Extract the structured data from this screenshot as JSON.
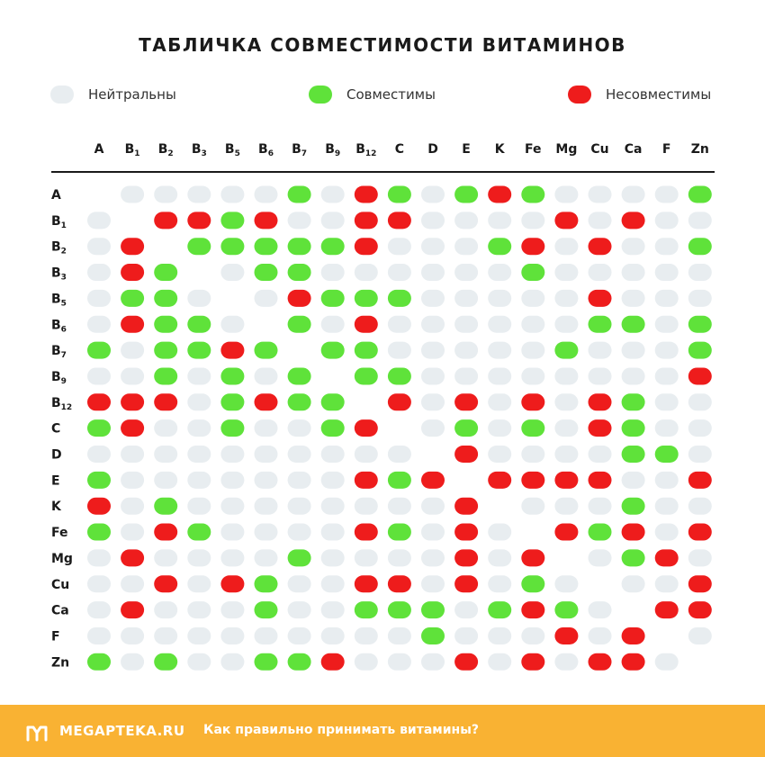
{
  "title": "ТАБЛИЧКА СОВМЕСТИМОСТИ ВИТАМИНОВ",
  "legend": [
    {
      "label": "Нейтральны",
      "color": "#e8edf0"
    },
    {
      "label": "Совместимы",
      "color": "#5fe23a"
    },
    {
      "label": "Несовместимы",
      "color": "#ee1c1c"
    }
  ],
  "colors": {
    "N": "#e8edf0",
    "G": "#5fe23a",
    "R": "#ee1c1c"
  },
  "columns": [
    {
      "base": "A",
      "sub": ""
    },
    {
      "base": "B",
      "sub": "1"
    },
    {
      "base": "B",
      "sub": "2"
    },
    {
      "base": "B",
      "sub": "3"
    },
    {
      "base": "B",
      "sub": "5"
    },
    {
      "base": "B",
      "sub": "6"
    },
    {
      "base": "B",
      "sub": "7"
    },
    {
      "base": "B",
      "sub": "9"
    },
    {
      "base": "B",
      "sub": "12"
    },
    {
      "base": "C",
      "sub": ""
    },
    {
      "base": "D",
      "sub": ""
    },
    {
      "base": "E",
      "sub": ""
    },
    {
      "base": "K",
      "sub": ""
    },
    {
      "base": "Fe",
      "sub": ""
    },
    {
      "base": "Mg",
      "sub": ""
    },
    {
      "base": "Cu",
      "sub": ""
    },
    {
      "base": "Ca",
      "sub": ""
    },
    {
      "base": "F",
      "sub": ""
    },
    {
      "base": "Zn",
      "sub": ""
    }
  ],
  "rows": [
    {
      "base": "A",
      "sub": "",
      "cells": "-NNNNNGNRGNGRGNNNNG"
    },
    {
      "base": "B",
      "sub": "1",
      "cells": "N-RRGRNNRRNNNNRNRNN"
    },
    {
      "base": "B",
      "sub": "2",
      "cells": "NR-GGGGGRNNNGRNRNNG"
    },
    {
      "base": "B",
      "sub": "3",
      "cells": "NRG-NGGNNNNNNGNNNNN"
    },
    {
      "base": "B",
      "sub": "5",
      "cells": "NGGN-NRGGGNNNNNRNNN"
    },
    {
      "base": "B",
      "sub": "6",
      "cells": "NRGGN-GNRNNNNNNGGNG"
    },
    {
      "base": "B",
      "sub": "7",
      "cells": "GNGGRG-GGNNNNNGNNNG"
    },
    {
      "base": "B",
      "sub": "9",
      "cells": "NNGNGNG-GGNNNNNNNNR"
    },
    {
      "base": "B",
      "sub": "12",
      "cells": "RRRNGRGG-RNRNRNRGNN"
    },
    {
      "base": "C",
      "sub": "",
      "cells": "GRNNGNNGR-NGNGNRGNN"
    },
    {
      "base": "D",
      "sub": "",
      "cells": "NNNNNNNNNN-RNNNNGGN"
    },
    {
      "base": "E",
      "sub": "",
      "cells": "GNNNNNNNRGR-RRRRNNR"
    },
    {
      "base": "K",
      "sub": "",
      "cells": "RNGNNNNNNNNR-NNNGNN"
    },
    {
      "base": "Fe",
      "sub": "",
      "cells": "GNRGNNNNRGNRN-RGRNR"
    },
    {
      "base": "Mg",
      "sub": "",
      "cells": "NRNNNNGNNNNRNR-NGRN"
    },
    {
      "base": "Cu",
      "sub": "",
      "cells": "NNRNRGNNRRNRNGN-NNR"
    },
    {
      "base": "Ca",
      "sub": "",
      "cells": "NRNNNGNNGGGNGRGN-RR"
    },
    {
      "base": "F",
      "sub": "",
      "cells": "NNNNNNNNNNGNNNRNR-N"
    },
    {
      "base": "Zn",
      "sub": "",
      "cells": "GNGNNGGRNNNRNRNRRN-"
    }
  ],
  "footer": {
    "brand": "MEGAPTEKA.RU",
    "link": "Как правильно принимать витамины?",
    "logo_icon": "m-logo-icon",
    "background": "#f9b233"
  }
}
